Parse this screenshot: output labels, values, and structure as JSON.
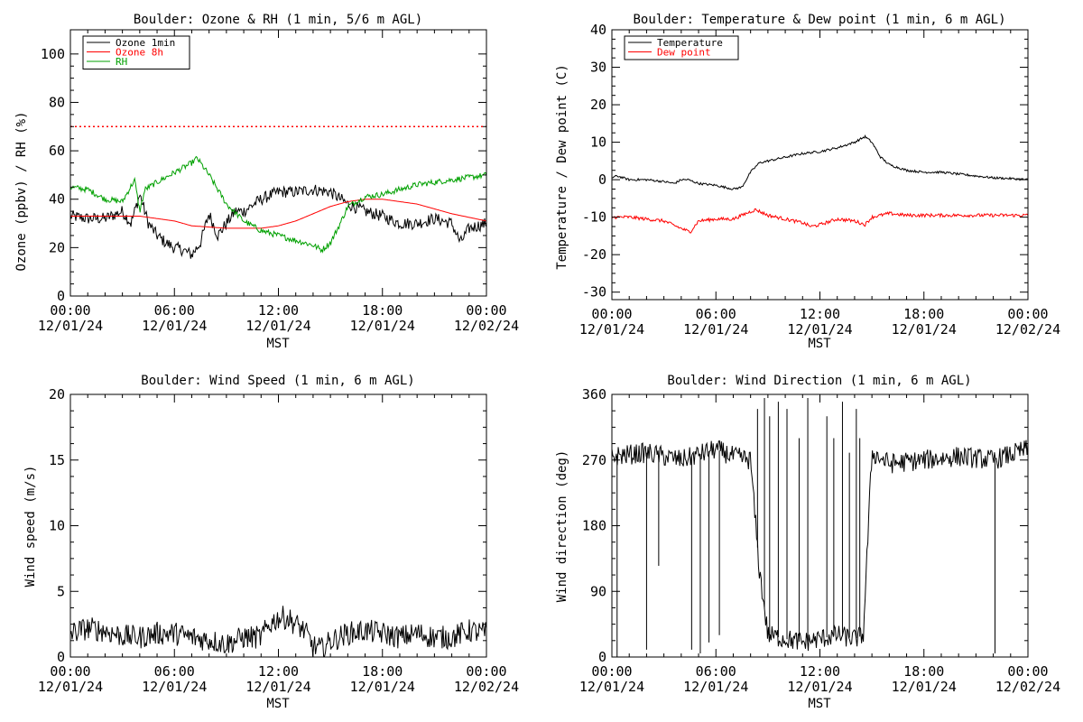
{
  "chart_data": [
    {
      "type": "line",
      "title": "Boulder: Ozone & RH (1 min, 5/6 m AGL)",
      "xlabel": "MST",
      "ylabel": "Ozone (ppbv) / RH (%)",
      "ylim": [
        0,
        110
      ],
      "yticks": [
        0,
        20,
        40,
        60,
        80,
        100
      ],
      "xlim_hours": [
        0,
        24
      ],
      "xtick_hours": [
        0,
        6,
        12,
        18,
        24
      ],
      "xtick_labels": [
        [
          "00:00",
          "12/01/24"
        ],
        [
          "06:00",
          "12/01/24"
        ],
        [
          "12:00",
          "12/01/24"
        ],
        [
          "18:00",
          "12/01/24"
        ],
        [
          "00:00",
          "12/02/24"
        ]
      ],
      "grid": false,
      "legend_position": "top-left",
      "reference_lines": [
        {
          "y": 70,
          "color": "#ff0000",
          "style": "dotted"
        }
      ],
      "series": [
        {
          "name": "Ozone 1min",
          "color": "#000000",
          "noise": 2.5,
          "x": [
            0,
            1,
            2,
            3,
            3.5,
            4,
            4.5,
            5,
            5.5,
            6,
            6.5,
            7,
            7.5,
            8,
            8.5,
            9,
            9.5,
            10,
            11,
            12,
            13,
            14,
            15,
            16,
            17,
            18,
            19,
            20,
            21,
            22,
            22.5,
            23,
            24
          ],
          "y": [
            33,
            32,
            32,
            35,
            30,
            42,
            30,
            25,
            22,
            20,
            19,
            17,
            22,
            34,
            25,
            30,
            35,
            35,
            40,
            43,
            43,
            44,
            43,
            38,
            35,
            33,
            30,
            30,
            32,
            30,
            22,
            28,
            30
          ]
        },
        {
          "name": "Ozone 8h",
          "color": "#ff0000",
          "noise": 0,
          "x": [
            0,
            2,
            4,
            5,
            6,
            7,
            8,
            9,
            10,
            11,
            12,
            13,
            14,
            15,
            16,
            17,
            18,
            19,
            20,
            21,
            22,
            23,
            24
          ],
          "y": [
            33,
            33,
            33,
            32,
            31,
            29,
            28.5,
            28,
            28,
            28,
            29,
            31,
            34,
            37,
            39,
            40,
            40,
            39,
            38,
            36,
            34,
            32.5,
            31
          ]
        },
        {
          "name": "RH",
          "color": "#00a000",
          "noise": 1.2,
          "x": [
            0,
            1,
            2,
            3,
            3.7,
            4,
            4.3,
            5,
            6,
            7,
            7.3,
            8,
            9,
            10,
            11,
            12,
            13,
            14,
            14.5,
            15,
            15.5,
            16,
            17,
            18,
            19,
            20,
            21,
            22,
            23,
            24
          ],
          "y": [
            45,
            44,
            40,
            39,
            48,
            35,
            44,
            47,
            51,
            55,
            57,
            50,
            38,
            31,
            27,
            25,
            23,
            21,
            19,
            22,
            29,
            37,
            41,
            42,
            44,
            46,
            47,
            48,
            49,
            50
          ]
        }
      ]
    },
    {
      "type": "line",
      "title": "Boulder: Temperature & Dew point (1 min, 6 m AGL)",
      "xlabel": "MST",
      "ylabel": "Temperature / Dew point (C)",
      "ylim": [
        -32,
        40
      ],
      "yticks": [
        -30,
        -20,
        -10,
        0,
        10,
        20,
        30,
        40
      ],
      "xlim_hours": [
        0,
        24
      ],
      "xtick_hours": [
        0,
        6,
        12,
        18,
        24
      ],
      "xtick_labels": [
        [
          "00:00",
          "12/01/24"
        ],
        [
          "06:00",
          "12/01/24"
        ],
        [
          "12:00",
          "12/01/24"
        ],
        [
          "18:00",
          "12/01/24"
        ],
        [
          "00:00",
          "12/02/24"
        ]
      ],
      "grid": false,
      "legend_position": "top-left",
      "series": [
        {
          "name": "Temperature",
          "color": "#000000",
          "noise": 0.3,
          "x": [
            0,
            0.3,
            1,
            2,
            3,
            3.6,
            4,
            4.4,
            5,
            6,
            7,
            7.5,
            8,
            8.5,
            9,
            9.5,
            10,
            11,
            12,
            13,
            14,
            14.6,
            15,
            15.5,
            16,
            17,
            18,
            19,
            20,
            21,
            22,
            23,
            24
          ],
          "y": [
            0.5,
            1,
            0,
            0,
            -0.5,
            -1,
            0,
            0,
            -1,
            -1.5,
            -2.5,
            -2,
            2,
            4.5,
            5,
            5.5,
            6,
            7,
            7.5,
            8.5,
            10,
            11.5,
            10,
            6,
            4,
            2.5,
            2,
            2,
            1.5,
            1,
            0.5,
            0.3,
            0
          ]
        },
        {
          "name": "Dew point",
          "color": "#ff0000",
          "noise": 0.45,
          "x": [
            0,
            1,
            2,
            3,
            4,
            4.5,
            5,
            6,
            7,
            8,
            8.3,
            9,
            10,
            11,
            11.5,
            12,
            13,
            14,
            14.6,
            15,
            16,
            17,
            18,
            20,
            22,
            24
          ],
          "y": [
            -10,
            -10,
            -10.5,
            -11,
            -13,
            -14,
            -11,
            -10.5,
            -10.5,
            -8.5,
            -8,
            -9.5,
            -10.5,
            -11.5,
            -12.5,
            -12,
            -10.5,
            -11,
            -12,
            -10,
            -9,
            -9.5,
            -9.5,
            -9.5,
            -9.5,
            -9.5
          ]
        }
      ]
    },
    {
      "type": "line",
      "title": "Boulder: Wind Speed (1 min, 6 m AGL)",
      "xlabel": "MST",
      "ylabel": "Wind speed (m/s)",
      "ylim": [
        0,
        20
      ],
      "yticks": [
        0,
        5,
        10,
        15,
        20
      ],
      "xlim_hours": [
        0,
        24
      ],
      "xtick_hours": [
        0,
        6,
        12,
        18,
        24
      ],
      "xtick_labels": [
        [
          "00:00",
          "12/01/24"
        ],
        [
          "06:00",
          "12/01/24"
        ],
        [
          "12:00",
          "12/01/24"
        ],
        [
          "18:00",
          "12/01/24"
        ],
        [
          "00:00",
          "12/02/24"
        ]
      ],
      "grid": false,
      "series": [
        {
          "color": "#000000",
          "noise": 0.9,
          "x": [
            0,
            1,
            2,
            3,
            4,
            5,
            6,
            7,
            8,
            9,
            10,
            11,
            11.5,
            12,
            12.5,
            13,
            13.5,
            14,
            14.5,
            15,
            16,
            17,
            18,
            19,
            20,
            21,
            22,
            23,
            24
          ],
          "y": [
            1.8,
            2.2,
            2,
            1.6,
            1.5,
            1.8,
            1.8,
            1.5,
            1.3,
            1.0,
            1.5,
            1.5,
            2.5,
            3.0,
            3.0,
            2.5,
            2.0,
            0.8,
            0.6,
            1.2,
            1.8,
            2.0,
            1.8,
            1.5,
            1.8,
            1.5,
            1.5,
            2.0,
            1.8
          ]
        }
      ]
    },
    {
      "type": "line",
      "title": "Boulder: Wind Direction (1 min, 6 m AGL)",
      "xlabel": "MST",
      "ylabel": "Wind direction (deg)",
      "ylim": [
        0,
        360
      ],
      "yticks": [
        0,
        90,
        180,
        270,
        360
      ],
      "xlim_hours": [
        0,
        24
      ],
      "xtick_hours": [
        0,
        6,
        12,
        18,
        24
      ],
      "xtick_labels": [
        [
          "00:00",
          "12/01/24"
        ],
        [
          "06:00",
          "12/01/24"
        ],
        [
          "12:00",
          "12/01/24"
        ],
        [
          "18:00",
          "12/01/24"
        ],
        [
          "00:00",
          "12/02/24"
        ]
      ],
      "grid": false,
      "series": [
        {
          "color": "#000000",
          "noise": 14,
          "x": [
            0,
            2,
            4,
            6,
            7,
            8,
            8.5,
            9,
            10,
            11,
            12,
            13,
            14,
            14.5,
            15,
            16,
            18,
            20,
            22,
            24
          ],
          "y": [
            275,
            280,
            270,
            285,
            275,
            270,
            120,
            30,
            25,
            20,
            25,
            30,
            25,
            30,
            280,
            265,
            270,
            275,
            270,
            285
          ],
          "spikes": [
            [
              0.3,
              0
            ],
            [
              2.0,
              10
            ],
            [
              2.7,
              125
            ],
            [
              4.6,
              10
            ],
            [
              5.1,
              5
            ],
            [
              5.6,
              20
            ],
            [
              6.2,
              30
            ],
            [
              8.4,
              340
            ],
            [
              8.8,
              355
            ],
            [
              9.1,
              330
            ],
            [
              9.6,
              350
            ],
            [
              10.1,
              340
            ],
            [
              10.8,
              300
            ],
            [
              11.3,
              355
            ],
            [
              12.4,
              330
            ],
            [
              12.8,
              300
            ],
            [
              13.3,
              350
            ],
            [
              13.7,
              280
            ],
            [
              14.1,
              340
            ],
            [
              14.3,
              300
            ],
            [
              22.1,
              5
            ]
          ]
        }
      ]
    }
  ]
}
